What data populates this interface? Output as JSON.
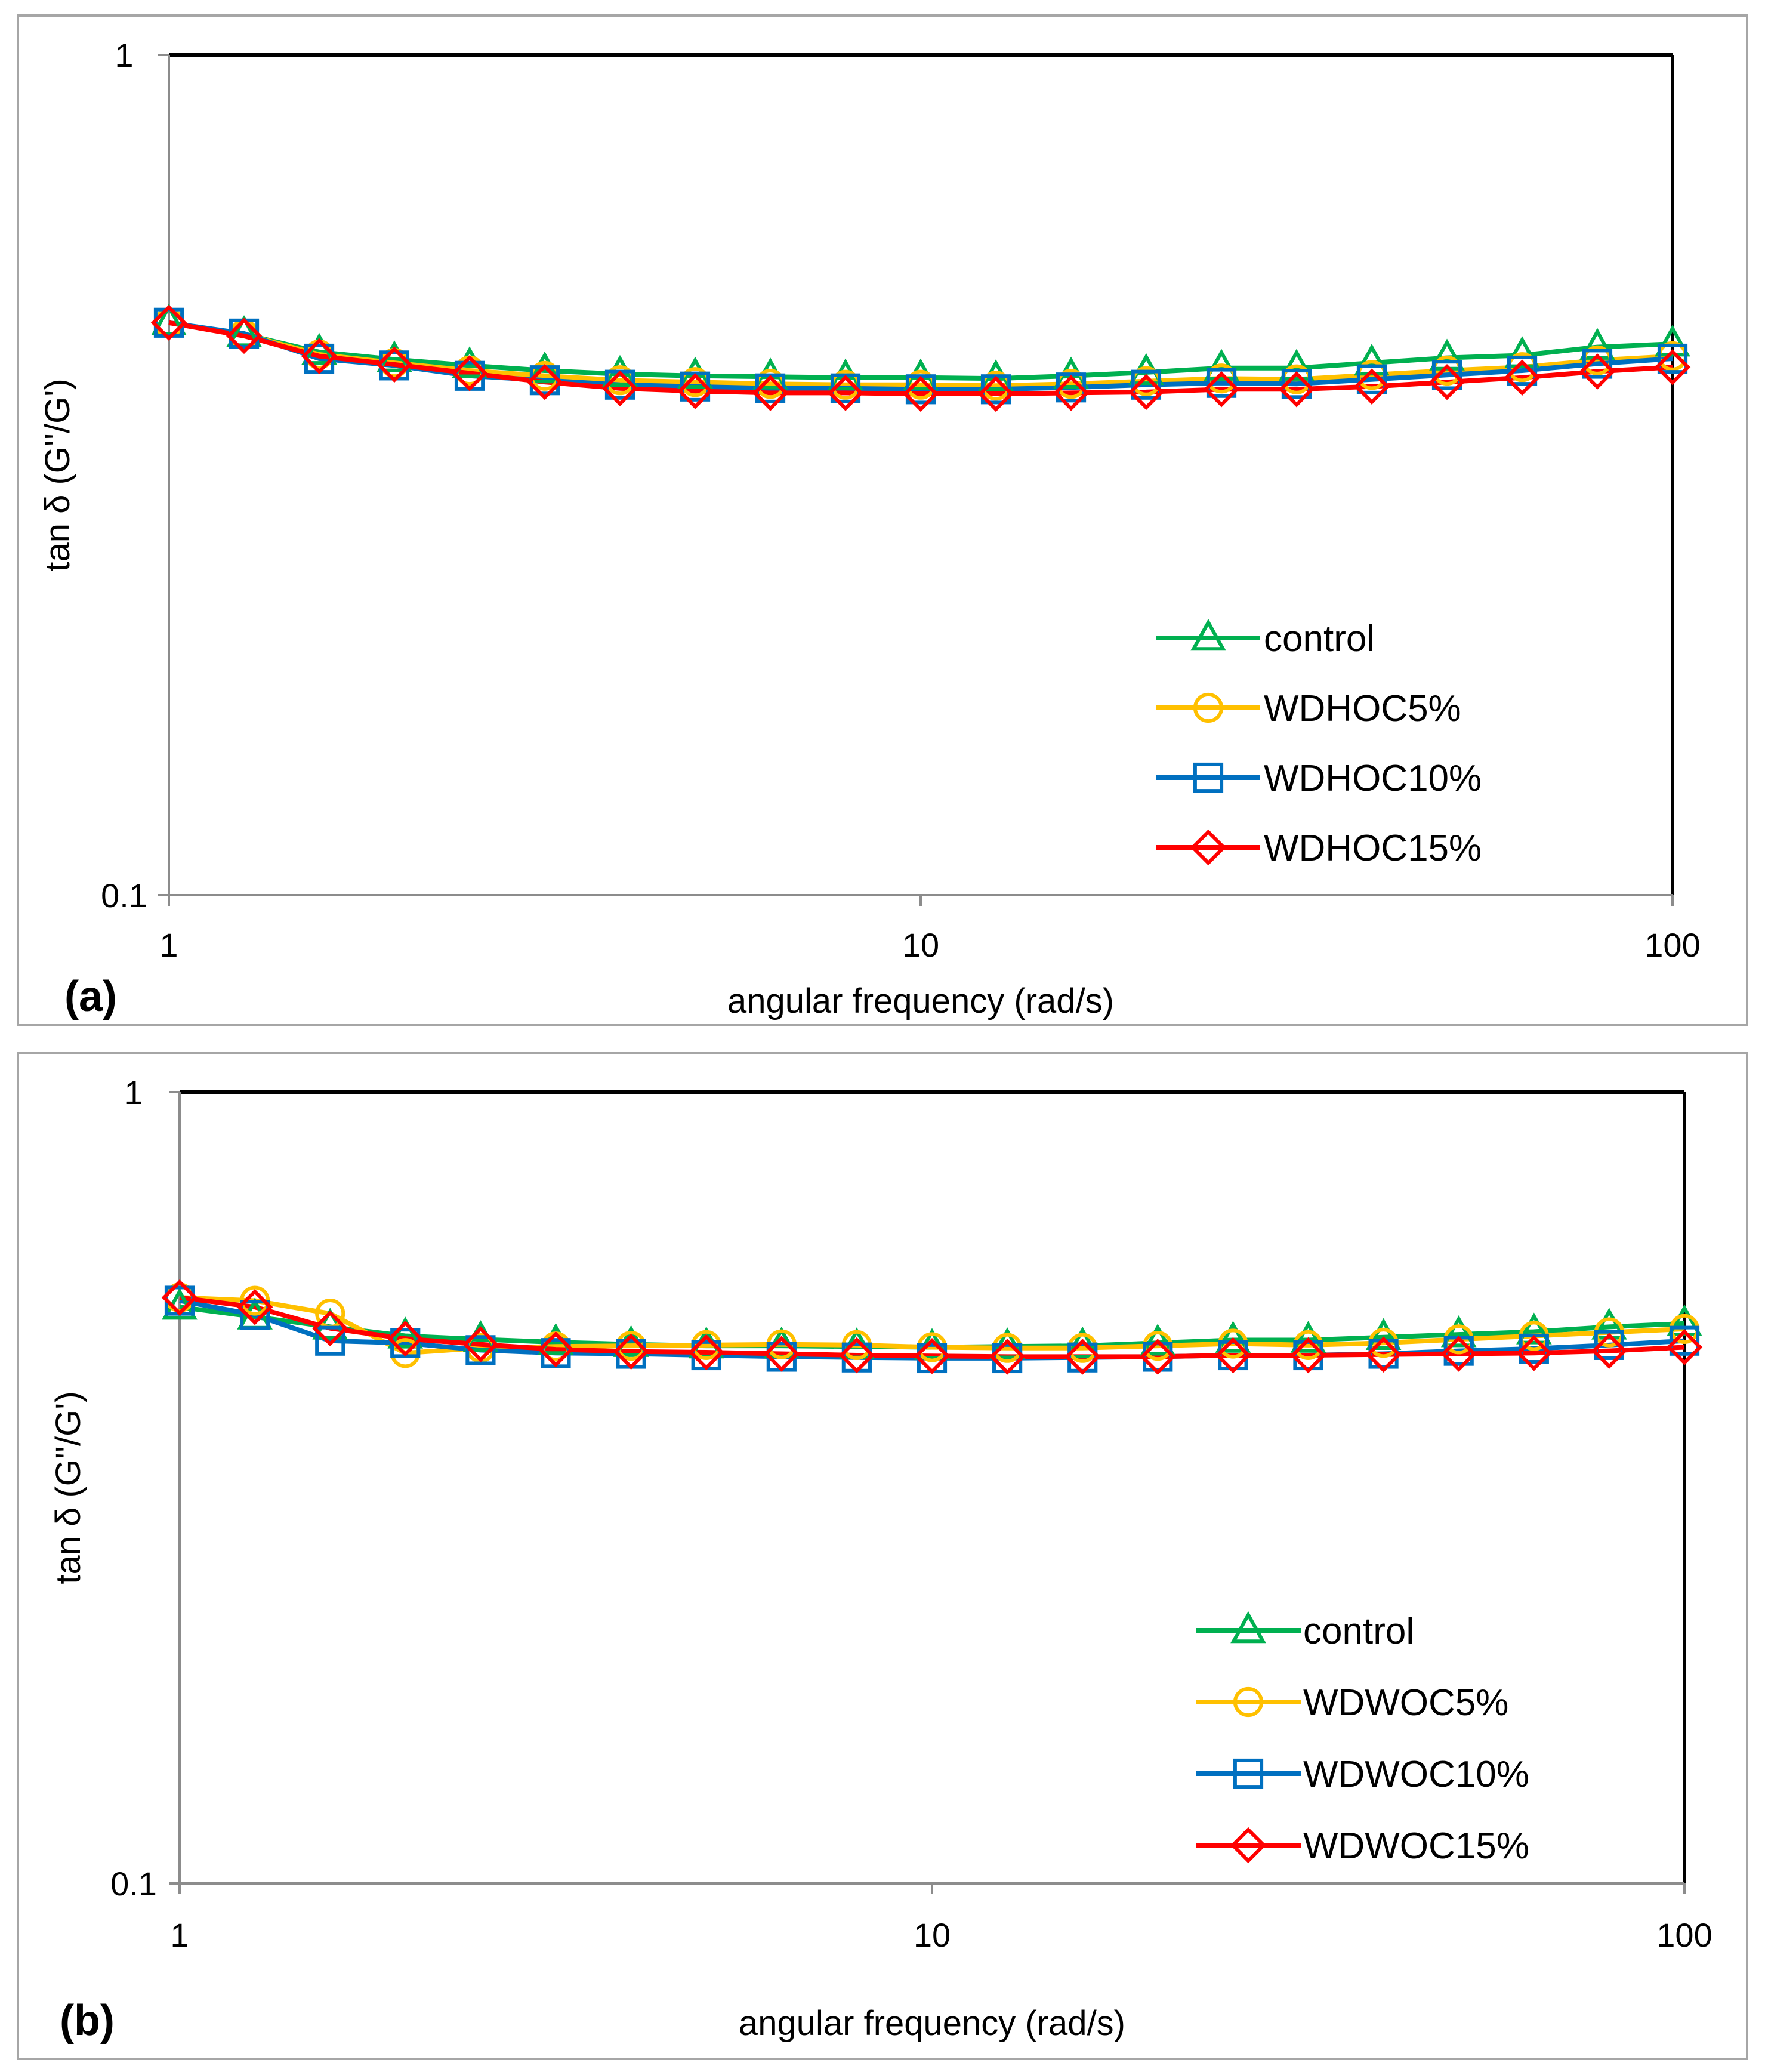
{
  "colors": {
    "control": "#00b050",
    "five": "#ffc000",
    "ten": "#0070c0",
    "fifteen": "#ff0000"
  },
  "chart_data": [
    {
      "panel_label": "(a)",
      "type": "line",
      "x_scale": "log",
      "y_scale": "log",
      "xlabel": "angular frequency (rad/s)",
      "ylabel": "tan δ (G''/G')",
      "xlim": [
        1,
        100
      ],
      "ylim": [
        0.1,
        1
      ],
      "x_ticks": [
        "1",
        "10",
        "100"
      ],
      "y_ticks": [
        "0.1",
        "1"
      ],
      "grid": false,
      "legend_position": "bottom-right",
      "x": [
        1,
        1.259,
        1.585,
        1.995,
        2.512,
        3.162,
        3.981,
        5.012,
        6.31,
        7.943,
        10,
        12.59,
        15.85,
        19.95,
        25.12,
        31.62,
        39.81,
        50.12,
        63.1,
        79.43,
        100
      ],
      "series": [
        {
          "name": "control",
          "marker": "triangle",
          "color": "#00b050",
          "values": [
            0.48,
            0.465,
            0.443,
            0.434,
            0.427,
            0.421,
            0.417,
            0.415,
            0.414,
            0.413,
            0.413,
            0.412,
            0.415,
            0.419,
            0.424,
            0.424,
            0.43,
            0.436,
            0.439,
            0.449,
            0.453
          ]
        },
        {
          "name": "WDHOC5%",
          "marker": "circle",
          "color": "#ffc000",
          "values": [
            0.48,
            0.465,
            0.44,
            0.43,
            0.421,
            0.415,
            0.41,
            0.408,
            0.406,
            0.405,
            0.405,
            0.404,
            0.406,
            0.409,
            0.412,
            0.411,
            0.416,
            0.421,
            0.425,
            0.433,
            0.438
          ]
        },
        {
          "name": "WDHOC10%",
          "marker": "square",
          "color": "#0070c0",
          "values": [
            0.48,
            0.466,
            0.435,
            0.427,
            0.415,
            0.41,
            0.405,
            0.403,
            0.401,
            0.401,
            0.4,
            0.4,
            0.402,
            0.405,
            0.407,
            0.406,
            0.411,
            0.416,
            0.421,
            0.429,
            0.435
          ]
        },
        {
          "name": "WDHOC15%",
          "marker": "diamond",
          "color": "#ff0000",
          "values": [
            0.48,
            0.463,
            0.438,
            0.428,
            0.418,
            0.408,
            0.401,
            0.398,
            0.396,
            0.396,
            0.395,
            0.395,
            0.396,
            0.397,
            0.4,
            0.4,
            0.403,
            0.408,
            0.413,
            0.42,
            0.425
          ]
        }
      ]
    },
    {
      "panel_label": "(b)",
      "type": "line",
      "x_scale": "log",
      "y_scale": "log",
      "xlabel": "angular frequency (rad/s)",
      "ylabel": "tan δ (G''/G')",
      "xlim": [
        1,
        100
      ],
      "ylim": [
        0.1,
        1
      ],
      "x_ticks": [
        "1",
        "10",
        "100"
      ],
      "y_ticks": [
        "0.1",
        "1"
      ],
      "grid": false,
      "legend_position": "bottom-right",
      "x": [
        1,
        1.259,
        1.585,
        1.995,
        2.512,
        3.162,
        3.981,
        5.012,
        6.31,
        7.943,
        10,
        12.59,
        15.85,
        19.95,
        25.12,
        31.62,
        39.81,
        50.12,
        63.1,
        79.43,
        100
      ],
      "series": [
        {
          "name": "control",
          "marker": "triangle",
          "color": "#00b050",
          "values": [
            0.535,
            0.52,
            0.505,
            0.492,
            0.487,
            0.483,
            0.48,
            0.478,
            0.478,
            0.477,
            0.476,
            0.477,
            0.478,
            0.482,
            0.486,
            0.486,
            0.49,
            0.494,
            0.498,
            0.505,
            0.51
          ]
        },
        {
          "name": "WDWOC5%",
          "marker": "circle",
          "color": "#ffc000",
          "values": [
            0.55,
            0.545,
            0.525,
            0.468,
            0.475,
            0.477,
            0.478,
            0.479,
            0.48,
            0.479,
            0.476,
            0.475,
            0.475,
            0.478,
            0.481,
            0.479,
            0.482,
            0.487,
            0.492,
            0.497,
            0.502
          ]
        },
        {
          "name": "WDWOC10%",
          "marker": "square",
          "color": "#0070c0",
          "values": [
            0.545,
            0.523,
            0.485,
            0.482,
            0.472,
            0.468,
            0.467,
            0.465,
            0.463,
            0.462,
            0.461,
            0.461,
            0.462,
            0.463,
            0.465,
            0.465,
            0.467,
            0.471,
            0.474,
            0.479,
            0.485
          ]
        },
        {
          "name": "WDWOC15%",
          "marker": "diamond",
          "color": "#ff0000",
          "values": [
            0.55,
            0.535,
            0.503,
            0.488,
            0.48,
            0.473,
            0.47,
            0.469,
            0.467,
            0.465,
            0.464,
            0.463,
            0.463,
            0.463,
            0.465,
            0.465,
            0.466,
            0.467,
            0.468,
            0.471,
            0.476
          ]
        }
      ]
    }
  ]
}
